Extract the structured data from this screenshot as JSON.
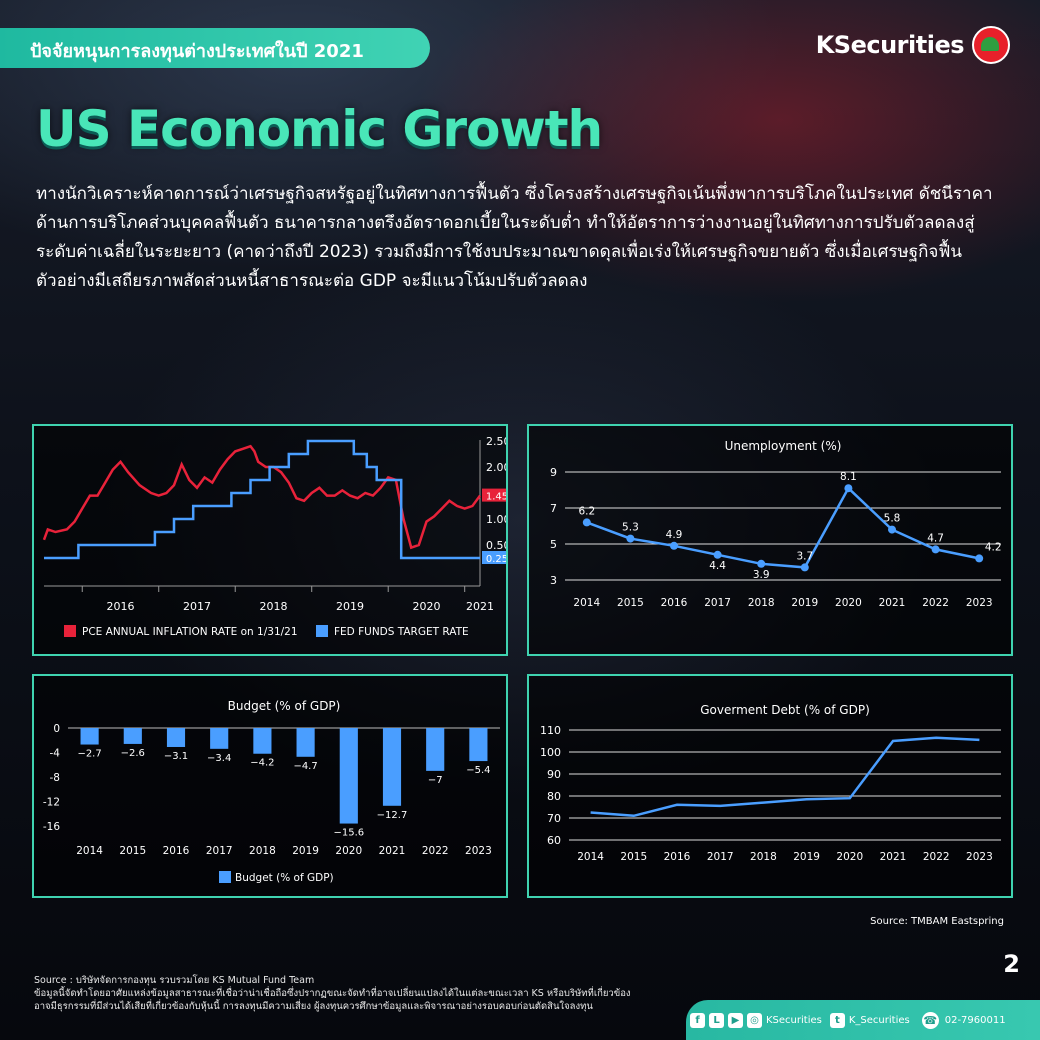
{
  "header": {
    "topic": "ปัจจัยหนุนการลงทุนต่างประเทศในปี 2021",
    "brand": "KSecurities",
    "title": "US Economic Growth",
    "intro": "ทางนักวิเคราะห์คาดการณ์ว่าเศรษฐกิจสหรัฐอยู่ในทิศทางการฟื้นตัว ซึ่งโครงสร้างเศรษฐกิจเน้นพึ่งพาการบริโภคในประเทศ ดัชนีราคาด้านการบริโภคส่วนบุคคลฟื้นตัว ธนาคารกลางตรึงอัตราดอกเบี้ยในระดับต่ำ ทำให้อัตราการว่างงานอยู่ในทิศทางการปรับตัวลดลงสู่ระดับค่าเฉลี่ยในระยะยาว (คาดว่าถึงปี 2023) รวมถึงมีการใช้งบประมาณขาดดุลเพื่อเร่งให้เศรษฐกิจขยายตัว ซึ่งเมื่อเศรษฐกิจฟื้นตัวอย่างมีเสถียรภาพสัดส่วนหนี้สาธารณะต่อ GDP จะมีแนวโน้มปรับตัวลดลง"
  },
  "colors": {
    "accent": "#3fd3b0",
    "title": "#49e6b8",
    "red": "#e8223a",
    "blue": "#4a9eff"
  },
  "chart_data": [
    {
      "type": "line",
      "id": "pce-fed",
      "x_ticks": [
        "2016",
        "2017",
        "2018",
        "2019",
        "2020",
        "2021"
      ],
      "y_ticks": [
        "2.50",
        "2.00",
        "1.50",
        "1.00",
        "0.50"
      ],
      "ylim": [
        0,
        2.5
      ],
      "series": [
        {
          "name": "PCE ANNUAL INFLATION RATE on 1/31/21",
          "color": "#e8223a",
          "end_label": "1.45",
          "points": [
            [
              2015.5,
              0.6
            ],
            [
              2015.55,
              0.8
            ],
            [
              2015.65,
              0.75
            ],
            [
              2015.8,
              0.8
            ],
            [
              2015.9,
              0.95
            ],
            [
              2016.0,
              1.2
            ],
            [
              2016.1,
              1.45
            ],
            [
              2016.2,
              1.45
            ],
            [
              2016.3,
              1.7
            ],
            [
              2016.4,
              1.95
            ],
            [
              2016.5,
              2.1
            ],
            [
              2016.6,
              1.9
            ],
            [
              2016.75,
              1.65
            ],
            [
              2016.9,
              1.5
            ],
            [
              2017.0,
              1.45
            ],
            [
              2017.1,
              1.5
            ],
            [
              2017.2,
              1.65
            ],
            [
              2017.3,
              2.05
            ],
            [
              2017.4,
              1.75
            ],
            [
              2017.5,
              1.6
            ],
            [
              2017.6,
              1.8
            ],
            [
              2017.7,
              1.7
            ],
            [
              2017.8,
              1.95
            ],
            [
              2017.9,
              2.15
            ],
            [
              2018.0,
              2.3
            ],
            [
              2018.1,
              2.35
            ],
            [
              2018.2,
              2.4
            ],
            [
              2018.25,
              2.3
            ],
            [
              2018.3,
              2.1
            ],
            [
              2018.4,
              2.0
            ],
            [
              2018.5,
              2.0
            ],
            [
              2018.6,
              1.9
            ],
            [
              2018.7,
              1.7
            ],
            [
              2018.8,
              1.4
            ],
            [
              2018.9,
              1.35
            ],
            [
              2019.0,
              1.5
            ],
            [
              2019.1,
              1.6
            ],
            [
              2019.2,
              1.45
            ],
            [
              2019.3,
              1.45
            ],
            [
              2019.4,
              1.55
            ],
            [
              2019.5,
              1.45
            ],
            [
              2019.6,
              1.4
            ],
            [
              2019.7,
              1.5
            ],
            [
              2019.8,
              1.45
            ],
            [
              2019.9,
              1.6
            ],
            [
              2020.0,
              1.8
            ],
            [
              2020.1,
              1.75
            ],
            [
              2020.2,
              1.0
            ],
            [
              2020.3,
              0.45
            ],
            [
              2020.4,
              0.5
            ],
            [
              2020.5,
              0.95
            ],
            [
              2020.6,
              1.05
            ],
            [
              2020.7,
              1.2
            ],
            [
              2020.8,
              1.35
            ],
            [
              2020.9,
              1.25
            ],
            [
              2021.0,
              1.2
            ],
            [
              2021.1,
              1.25
            ],
            [
              2021.2,
              1.45
            ]
          ]
        },
        {
          "name": "FED FUNDS TARGET RATE",
          "color": "#4a9eff",
          "end_label": "0.25",
          "points": [
            [
              2015.5,
              0.25
            ],
            [
              2015.95,
              0.25
            ],
            [
              2015.95,
              0.5
            ],
            [
              2016.95,
              0.5
            ],
            [
              2016.95,
              0.75
            ],
            [
              2017.2,
              0.75
            ],
            [
              2017.2,
              1.0
            ],
            [
              2017.45,
              1.0
            ],
            [
              2017.45,
              1.25
            ],
            [
              2017.95,
              1.25
            ],
            [
              2017.95,
              1.5
            ],
            [
              2018.2,
              1.5
            ],
            [
              2018.2,
              1.75
            ],
            [
              2018.45,
              1.75
            ],
            [
              2018.45,
              2.0
            ],
            [
              2018.7,
              2.0
            ],
            [
              2018.7,
              2.25
            ],
            [
              2018.95,
              2.25
            ],
            [
              2018.95,
              2.5
            ],
            [
              2019.55,
              2.5
            ],
            [
              2019.55,
              2.25
            ],
            [
              2019.72,
              2.25
            ],
            [
              2019.72,
              2.0
            ],
            [
              2019.85,
              2.0
            ],
            [
              2019.85,
              1.75
            ],
            [
              2020.17,
              1.75
            ],
            [
              2020.17,
              0.25
            ],
            [
              2021.2,
              0.25
            ]
          ]
        }
      ]
    },
    {
      "type": "line",
      "id": "unemployment",
      "title": "Unemployment (%)",
      "x": [
        "2014",
        "2015",
        "2016",
        "2017",
        "2018",
        "2019",
        "2020",
        "2021",
        "2022",
        "2023"
      ],
      "values": [
        6.2,
        5.3,
        4.9,
        4.4,
        3.9,
        3.7,
        8.1,
        5.8,
        4.7,
        4.2
      ],
      "labels": [
        "6.2",
        "5.3",
        "4.9",
        "4.4",
        "3.9",
        "3.7",
        "8.1",
        "5.8",
        "4.7",
        "4.2"
      ],
      "y_ticks": [
        "9",
        "7",
        "5",
        "3"
      ],
      "ylim": [
        3,
        9
      ]
    },
    {
      "type": "bar",
      "id": "budget",
      "title": "Budget (% of GDP)",
      "legend": "Budget (% of GDP)",
      "categories": [
        "2014",
        "2015",
        "2016",
        "2017",
        "2018",
        "2019",
        "2020",
        "2021",
        "2022",
        "2023"
      ],
      "values": [
        -2.7,
        -2.6,
        -3.1,
        -3.4,
        -4.2,
        -4.7,
        -15.6,
        -12.7,
        -7,
        -5.4
      ],
      "labels": [
        "−2.7",
        "−2.6",
        "−3.1",
        "−3.4",
        "−4.2",
        "−4.7",
        "−15.6",
        "−12.7",
        "−7",
        "−5.4"
      ],
      "y_ticks": [
        "0",
        "-4",
        "-8",
        "-12",
        "-16"
      ],
      "ylim": [
        -16,
        0
      ]
    },
    {
      "type": "line",
      "id": "debt",
      "title": "Goverment Debt (% of GDP)",
      "x": [
        "2014",
        "2015",
        "2016",
        "2017",
        "2018",
        "2019",
        "2020",
        "2021",
        "2022",
        "2023"
      ],
      "values": [
        72.5,
        71,
        76,
        75.5,
        77,
        78.5,
        79,
        105,
        106.5,
        105.5
      ],
      "y_ticks": [
        "110",
        "100",
        "90",
        "80",
        "70",
        "60"
      ],
      "ylim": [
        60,
        110
      ]
    }
  ],
  "footer": {
    "source_right": "Source: TMBAM Eastspring",
    "page_number": "2",
    "source_line": "Source : บริษัทจัดการกองทุน รวบรวมโดย KS Mutual Fund Team",
    "disclaimer_1": "ข้อมูลนี้จัดทำโดยอาศัยแหล่งข้อมูลสาธารณะที่เชื่อว่าน่าเชื่อถือซึ่งปรากฏขณะจัดทำที่อาจเปลี่ยนแปลงได้ในแต่ละขณะเวลา KS หรือบริษัทที่เกี่ยวข้อง",
    "disclaimer_2": "อาจมีธุรกรรมที่มีส่วนได้เสียที่เกี่ยวข้องกับหุ้นนี้ การลงทุนมีความเสี่ยง ผู้ลงทุนควรศึกษาข้อมูลและพิจารณาอย่างรอบคอบก่อนตัดสินใจลงทุน",
    "social_handle": "KSecurities",
    "twitter_handle": "K_Securities",
    "phone": "02-7960011"
  }
}
